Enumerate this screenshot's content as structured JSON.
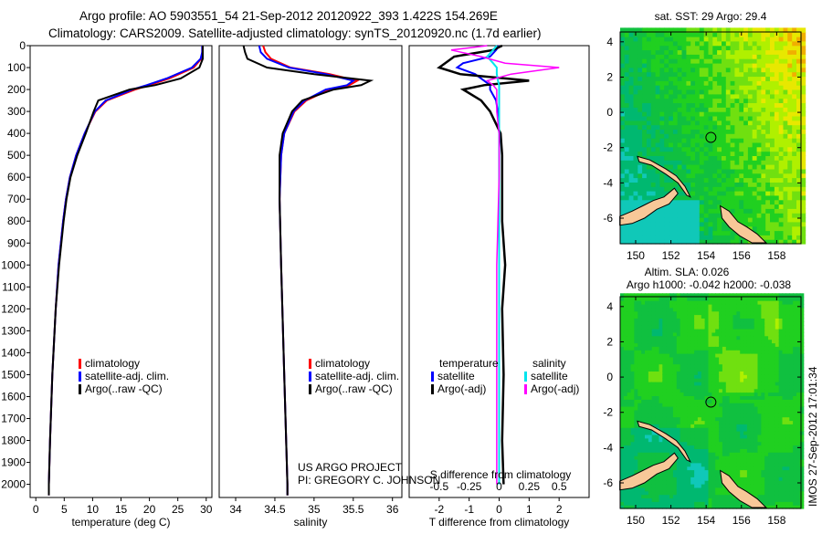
{
  "header": {
    "title_line1": "Argo profile: AO 5903551_54 21-Sep-2012 20120922_393 1.422S 154.269E",
    "title_line2": "Climatology: CARS2009. Satellite-adjusted climatology: synTS_20120920.nc (1.7d earlier)"
  },
  "credits": {
    "project": "US ARGO PROJECT",
    "pi": "PI: GREGORY C. JOHNSON",
    "stamp": "IMOS 27-Sep-2012 17:01:34"
  },
  "colors": {
    "climatology": "#ff0000",
    "satellite": "#0000ff",
    "argo": "#000000",
    "sat_salinity": "#00e5ee",
    "argo_salinity": "#ff00ff"
  },
  "chart_data": [
    {
      "type": "line",
      "name": "temperature",
      "xlabel": "temperature (deg C)",
      "ylabel": "",
      "xlim": [
        -1,
        31
      ],
      "ylim": [
        2060,
        0
      ],
      "xticks": [
        "0",
        "5",
        "10",
        "15",
        "20",
        "25",
        "30"
      ],
      "xtick_values": [
        0,
        5,
        10,
        15,
        20,
        25,
        30
      ],
      "yticks": [
        "0",
        "100",
        "200",
        "300",
        "400",
        "500",
        "600",
        "700",
        "800",
        "900",
        "1000",
        "1100",
        "1200",
        "1300",
        "1400",
        "1500",
        "1600",
        "1700",
        "1800",
        "1900",
        "2000"
      ],
      "legend": [
        "climatology",
        "satellite-adj. clim.",
        "Argo(..raw -QC)"
      ],
      "depth": [
        0,
        30,
        60,
        100,
        150,
        180,
        200,
        250,
        300,
        400,
        500,
        600,
        700,
        800,
        1000,
        1200,
        1500,
        1800,
        2000,
        2050
      ],
      "series": [
        {
          "name": "climatology",
          "values": [
            29.3,
            29.3,
            29.1,
            27.8,
            23.5,
            20,
            17.5,
            12.5,
            10.5,
            8.6,
            7.1,
            6.0,
            5.3,
            4.8,
            4.0,
            3.5,
            2.9,
            2.5,
            2.3,
            2.3
          ]
        },
        {
          "name": "satellite-adj. clim.",
          "values": [
            29.3,
            29.3,
            29.0,
            27.5,
            23.0,
            19.5,
            17.0,
            12.3,
            10.4,
            8.6,
            7.1,
            6.0,
            5.3,
            4.8,
            4.0,
            3.5,
            2.9,
            2.5,
            2.3,
            2.3
          ]
        },
        {
          "name": "Argo(..raw -QC)",
          "values": [
            29.4,
            29.4,
            29.4,
            28.8,
            25.5,
            21.0,
            16.5,
            11.0,
            10.2,
            8.8,
            7.3,
            6.1,
            5.4,
            4.9,
            4.1,
            3.5,
            2.9,
            2.5,
            2.3,
            2.3
          ]
        }
      ]
    },
    {
      "type": "line",
      "name": "salinity",
      "xlabel": "salinity",
      "ylabel": "",
      "xlim": [
        33.79,
        36.12
      ],
      "ylim": [
        2060,
        0
      ],
      "xticks": [
        "34",
        "34.5",
        "35",
        "35.5",
        "36"
      ],
      "xtick_values": [
        34,
        34.5,
        35,
        35.5,
        36
      ],
      "legend": [
        "climatology",
        "satellite-adj. clim.",
        "Argo(..raw -QC)"
      ],
      "depth": [
        0,
        30,
        60,
        100,
        130,
        160,
        180,
        200,
        250,
        300,
        400,
        500,
        700,
        1000,
        1500,
        2000,
        2050
      ],
      "series": [
        {
          "name": "climatology",
          "values": [
            34.35,
            34.38,
            34.45,
            34.7,
            35.2,
            35.55,
            35.45,
            35.2,
            34.9,
            34.75,
            34.62,
            34.58,
            34.56,
            34.58,
            34.62,
            34.66,
            34.66
          ]
        },
        {
          "name": "satellite-adj. clim.",
          "values": [
            34.3,
            34.32,
            34.4,
            34.68,
            35.15,
            35.5,
            35.42,
            35.15,
            34.88,
            34.74,
            34.62,
            34.58,
            34.56,
            34.58,
            34.62,
            34.66,
            34.66
          ]
        },
        {
          "name": "Argo(..raw -QC)",
          "values": [
            34.1,
            34.12,
            34.15,
            34.4,
            35.0,
            35.72,
            35.6,
            35.25,
            34.85,
            34.72,
            34.6,
            34.56,
            34.56,
            34.58,
            34.62,
            34.66,
            34.66
          ]
        }
      ]
    },
    {
      "type": "line",
      "name": "difference from climatology",
      "xlabel": "T difference from climatology",
      "xlabel2": "S difference from climatology",
      "xlim": [
        -3,
        3
      ],
      "ylim": [
        2060,
        0
      ],
      "xticks": [
        "-2",
        "-1",
        "0",
        "1",
        "2"
      ],
      "xtick_values": [
        -2,
        -1,
        0,
        1,
        2
      ],
      "xticks2": [
        "-0.5",
        "-0.25",
        "0",
        "0.25",
        "0.5"
      ],
      "xtick2_values": [
        -0.5,
        -0.25,
        0,
        0.25,
        0.5
      ],
      "legend_temperature_title": "temperature",
      "legend_salinity_title": "salinity",
      "legend": [
        "satellite",
        "Argo(-adj)",
        "satellite",
        "Argo(-adj)"
      ],
      "depth": [
        0,
        20,
        50,
        80,
        100,
        130,
        160,
        180,
        200,
        250,
        300,
        400,
        500,
        600,
        800,
        1000,
        1200,
        1500,
        1800,
        2000
      ],
      "series": [
        {
          "name": "T satellite",
          "values": [
            0,
            -0.1,
            -0.3,
            -1.2,
            -1.4,
            -0.8,
            -0.5,
            -0.3,
            -0.3,
            -0.1,
            -0.05,
            0,
            0,
            0,
            0,
            0,
            0,
            0,
            0,
            0
          ]
        },
        {
          "name": "T Argo(-adj)",
          "values": [
            0.1,
            -0.2,
            -1.5,
            -1.8,
            -2.0,
            -1.3,
            1.0,
            -0.5,
            -1.2,
            -0.6,
            -0.3,
            0.05,
            0.1,
            0.1,
            0.1,
            0.2,
            0.1,
            0.15,
            0.1,
            0.15
          ]
        },
        {
          "name": "S satellite",
          "values": [
            -0.02,
            -0.05,
            -0.1,
            -0.05,
            -0.02,
            -0.02,
            -0.01,
            0,
            0,
            0,
            0,
            0,
            0,
            0,
            0,
            0,
            0,
            0,
            0,
            0
          ]
        },
        {
          "name": "S Argo(-adj)",
          "values": [
            -0.1,
            -0.4,
            -0.15,
            0.05,
            0.5,
            0.1,
            -0.1,
            -0.05,
            -0.02,
            -0.02,
            -0.02,
            0,
            0,
            0,
            -0.01,
            -0.02,
            -0.02,
            -0.02,
            -0.02,
            -0.02
          ]
        }
      ]
    },
    {
      "type": "heatmap",
      "name": "sst map",
      "title": "sat. SST: 29 Argo: 29.4",
      "xlim": [
        149.12,
        159.38
      ],
      "ylim": [
        -7.45,
        4.56
      ],
      "xticks": [
        "150",
        "152",
        "154",
        "156",
        "158"
      ],
      "xtick_values": [
        150,
        152,
        154,
        156,
        158
      ],
      "yticks": [
        "4",
        "2",
        "0",
        "-2",
        "-4",
        "-6"
      ],
      "ytick_values": [
        4,
        2,
        0,
        -2,
        -4,
        -6
      ],
      "float_position": {
        "lon": 154.269,
        "lat": -1.422
      }
    },
    {
      "type": "heatmap",
      "name": "sla map",
      "title": "Altim. SLA: 0.026",
      "subtitle": "Argo h1000: -0.042 h2000: -0.038",
      "xlim": [
        149.12,
        159.38
      ],
      "ylim": [
        -7.45,
        4.56
      ],
      "xticks": [
        "150",
        "152",
        "154",
        "156",
        "158"
      ],
      "xtick_values": [
        150,
        152,
        154,
        156,
        158
      ],
      "yticks": [
        "4",
        "2",
        "0",
        "-2",
        "-4",
        "-6"
      ],
      "ytick_values": [
        4,
        2,
        0,
        -2,
        -4,
        -6
      ],
      "float_position": {
        "lon": 154.269,
        "lat": -1.422
      }
    }
  ]
}
